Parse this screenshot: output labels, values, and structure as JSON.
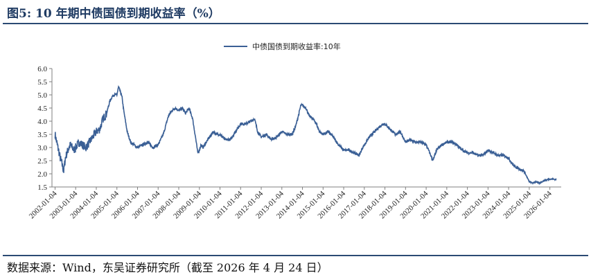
{
  "figure_title": "图5:  10 年期中债国债到期收益率（%）",
  "source_note": "数据来源：Wind，东吴证券研究所（截至 2026 年 4 月 24 日）",
  "colors": {
    "line": "#3a5f95",
    "axis": "#7f7f7f",
    "text": "#222222"
  },
  "chart_data": {
    "type": "line",
    "title": "",
    "xlabel": "",
    "ylabel": "",
    "ylim": [
      1.5,
      6.0
    ],
    "yticks": [
      "6.0",
      "5.5",
      "5.0",
      "4.5",
      "4.0",
      "3.5",
      "3.0",
      "2.5",
      "2.0",
      "1.5"
    ],
    "xticks": [
      "2002-01-04",
      "2003-01-04",
      "2004-01-04",
      "2005-01-04",
      "2006-01-04",
      "2007-01-04",
      "2008-01-04",
      "2009-01-04",
      "2010-01-04",
      "2011-01-04",
      "2012-01-04",
      "2013-01-04",
      "2014-01-04",
      "2015-01-04",
      "2016-01-04",
      "2017-01-04",
      "2018-01-04",
      "2019-01-04",
      "2020-01-04",
      "2021-01-04",
      "2022-01-04",
      "2023-01-04",
      "2024-01-04",
      "2025-01-04",
      "2026-01-04"
    ],
    "legend_position": "top-center",
    "grid": false,
    "series": [
      {
        "name": "中债国债到期收益率:10年",
        "x": [
          2002.0,
          2002.08,
          2002.17,
          2002.25,
          2002.33,
          2002.42,
          2002.5,
          2002.58,
          2002.67,
          2002.75,
          2002.83,
          2002.92,
          2003.0,
          2003.17,
          2003.33,
          2003.5,
          2003.67,
          2003.83,
          2004.0,
          2004.17,
          2004.33,
          2004.5,
          2004.67,
          2004.83,
          2005.0,
          2005.08,
          2005.17,
          2005.25,
          2005.33,
          2005.5,
          2005.67,
          2005.83,
          2006.0,
          2006.25,
          2006.5,
          2006.75,
          2007.0,
          2007.25,
          2007.5,
          2007.67,
          2007.83,
          2008.0,
          2008.17,
          2008.33,
          2008.5,
          2008.67,
          2008.83,
          2008.92,
          2009.0,
          2009.08,
          2009.17,
          2009.33,
          2009.5,
          2009.67,
          2009.83,
          2010.0,
          2010.25,
          2010.5,
          2010.75,
          2011.0,
          2011.25,
          2011.5,
          2011.67,
          2011.83,
          2012.0,
          2012.25,
          2012.5,
          2012.75,
          2013.0,
          2013.25,
          2013.5,
          2013.67,
          2013.83,
          2013.92,
          2014.0,
          2014.17,
          2014.33,
          2014.5,
          2014.67,
          2014.83,
          2015.0,
          2015.25,
          2015.5,
          2015.75,
          2016.0,
          2016.25,
          2016.5,
          2016.75,
          2016.92,
          2017.0,
          2017.25,
          2017.5,
          2017.75,
          2017.92,
          2018.0,
          2018.25,
          2018.5,
          2018.75,
          2019.0,
          2019.25,
          2019.5,
          2019.75,
          2020.0,
          2020.17,
          2020.33,
          2020.5,
          2020.75,
          2021.0,
          2021.25,
          2021.5,
          2021.75,
          2022.0,
          2022.25,
          2022.5,
          2022.75,
          2023.0,
          2023.25,
          2023.5,
          2023.75,
          2024.0,
          2024.25,
          2024.5,
          2024.75,
          2025.0,
          2025.17,
          2025.33,
          2025.5,
          2025.75,
          2026.0,
          2026.15,
          2026.31
        ],
        "values": [
          3.5,
          3.2,
          2.9,
          2.6,
          2.4,
          2.1,
          2.6,
          2.8,
          3.0,
          3.1,
          3.0,
          2.9,
          3.0,
          3.2,
          3.1,
          3.0,
          3.2,
          3.4,
          3.6,
          3.7,
          4.1,
          4.3,
          4.8,
          5.0,
          5.0,
          5.3,
          5.1,
          4.9,
          4.4,
          3.6,
          3.2,
          3.1,
          3.0,
          3.1,
          3.2,
          3.0,
          3.1,
          3.5,
          4.2,
          4.4,
          4.5,
          4.4,
          4.5,
          4.3,
          4.5,
          4.1,
          3.3,
          2.8,
          2.9,
          3.1,
          3.0,
          3.2,
          3.4,
          3.6,
          3.5,
          3.5,
          3.3,
          3.3,
          3.6,
          3.9,
          3.9,
          4.0,
          4.1,
          3.6,
          3.4,
          3.5,
          3.3,
          3.4,
          3.6,
          3.5,
          3.5,
          3.8,
          4.3,
          4.6,
          4.6,
          4.5,
          4.2,
          4.1,
          3.9,
          3.6,
          3.5,
          3.6,
          3.4,
          3.1,
          2.9,
          2.9,
          2.8,
          2.7,
          3.0,
          3.1,
          3.4,
          3.6,
          3.8,
          3.9,
          3.9,
          3.7,
          3.5,
          3.6,
          3.2,
          3.3,
          3.2,
          3.2,
          3.1,
          2.8,
          2.5,
          2.9,
          3.1,
          3.2,
          3.2,
          3.1,
          2.9,
          2.8,
          2.8,
          2.7,
          2.7,
          2.9,
          2.8,
          2.7,
          2.7,
          2.6,
          2.3,
          2.2,
          2.1,
          1.7,
          1.65,
          1.7,
          1.65,
          1.75,
          1.8,
          1.8,
          1.78
        ]
      }
    ]
  }
}
